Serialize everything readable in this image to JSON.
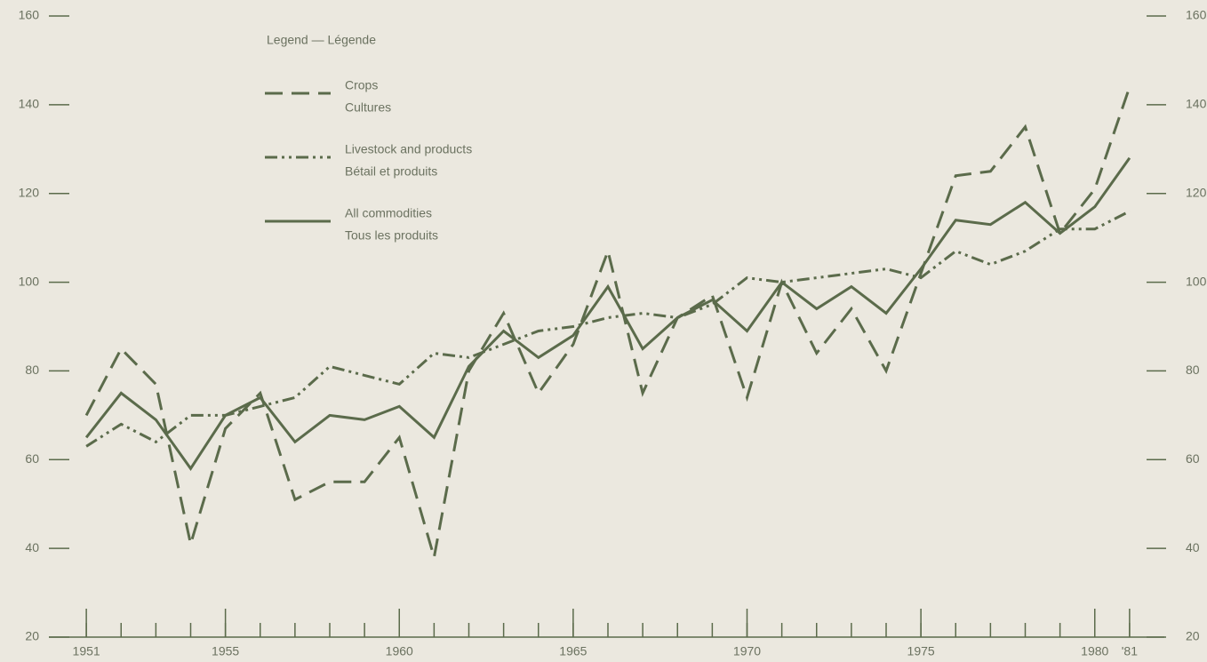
{
  "chart_data": {
    "type": "line",
    "legend_title": "Legend — Légende",
    "x": [
      1951,
      1952,
      1953,
      1954,
      1955,
      1956,
      1957,
      1958,
      1959,
      1960,
      1961,
      1962,
      1963,
      1964,
      1965,
      1966,
      1967,
      1968,
      1969,
      1970,
      1971,
      1972,
      1973,
      1974,
      1975,
      1976,
      1977,
      1978,
      1979,
      1980,
      1981
    ],
    "series": [
      {
        "name": "Crops",
        "name_fr": "Cultures",
        "color": "#5b6b4b",
        "style": "dashed",
        "values": [
          70,
          85,
          77,
          41,
          67,
          75,
          51,
          55,
          55,
          65,
          38,
          80,
          93,
          75,
          86,
          107,
          75,
          92,
          97,
          74,
          100,
          84,
          94,
          80,
          102,
          124,
          125,
          135,
          111,
          121,
          144
        ]
      },
      {
        "name": "Livestock and products",
        "name_fr": "Bétail et produits",
        "color": "#5b6b4b",
        "style": "dash-dot-dot",
        "values": [
          63,
          68,
          64,
          70,
          70,
          72,
          74,
          81,
          79,
          77,
          84,
          83,
          86,
          89,
          90,
          92,
          93,
          92,
          95,
          101,
          100,
          101,
          102,
          103,
          101,
          107,
          104,
          107,
          112,
          112,
          116
        ]
      },
      {
        "name": "All commodities",
        "name_fr": "Tous les produits",
        "color": "#5b6b4b",
        "style": "solid",
        "values": [
          65,
          75,
          69,
          58,
          70,
          74,
          64,
          70,
          69,
          72,
          65,
          81,
          89,
          83,
          88,
          99,
          85,
          92,
          96,
          89,
          100,
          94,
          99,
          93,
          103,
          114,
          113,
          118,
          111,
          117,
          128
        ]
      }
    ],
    "xlim": [
      1950,
      1982
    ],
    "xticks": [
      1951,
      1955,
      1960,
      1965,
      1970,
      1975,
      1980,
      {
        "value": 1981,
        "label": "'81"
      }
    ],
    "ylim": [
      20,
      160
    ],
    "yticks": [
      20,
      40,
      60,
      80,
      100,
      120,
      140,
      160
    ],
    "right_axis": true
  }
}
